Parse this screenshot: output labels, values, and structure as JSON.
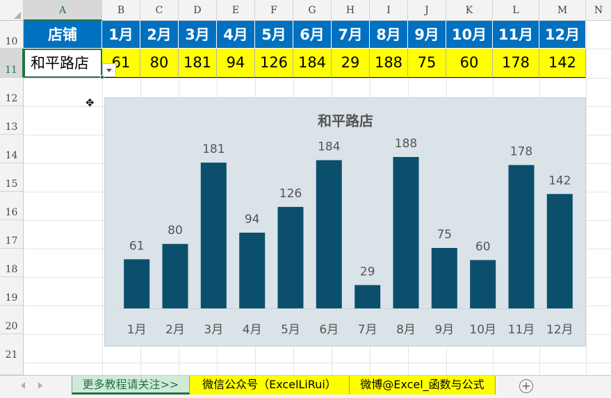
{
  "columns": [
    "A",
    "B",
    "C",
    "D",
    "E",
    "F",
    "G",
    "H",
    "I",
    "J",
    "K",
    "L",
    "M",
    "N"
  ],
  "rows": [
    "10",
    "11",
    "12",
    "13",
    "14",
    "15",
    "16",
    "17",
    "18",
    "19",
    "20",
    "21"
  ],
  "table": {
    "header_label": "店铺",
    "months": [
      "1月",
      "2月",
      "3月",
      "4月",
      "5月",
      "6月",
      "7月",
      "8月",
      "9月",
      "10月",
      "11月",
      "12月"
    ],
    "store": "和平路店",
    "values": [
      "61",
      "80",
      "181",
      "94",
      "126",
      "184",
      "29",
      "188",
      "75",
      "60",
      "178",
      "142"
    ]
  },
  "colors": {
    "header_bg": "#0070c0",
    "value_bg": "#ffff00",
    "bar": "#0b4f6c",
    "chart_bg": "#d9e3e8",
    "selection": "#217346"
  },
  "chart_data": {
    "type": "bar",
    "title": "和平路店",
    "categories": [
      "1月",
      "2月",
      "3月",
      "4月",
      "5月",
      "6月",
      "7月",
      "8月",
      "9月",
      "10月",
      "11月",
      "12月"
    ],
    "values": [
      61,
      80,
      181,
      94,
      126,
      184,
      29,
      188,
      75,
      60,
      178,
      142
    ],
    "xlabel": "",
    "ylabel": "",
    "ylim": [
      0,
      200
    ],
    "grid": false,
    "legend": "none",
    "data_labels": true
  },
  "sheet_tabs": [
    "更多教程请关注>>",
    "微信公众号（ExcelLiRui）",
    "微博@Excel_函数与公式"
  ],
  "icons": {
    "add_sheet": "plus-circle-icon",
    "dropdown": "dropdown-arrow-icon",
    "cursor": "move-cursor-icon"
  }
}
